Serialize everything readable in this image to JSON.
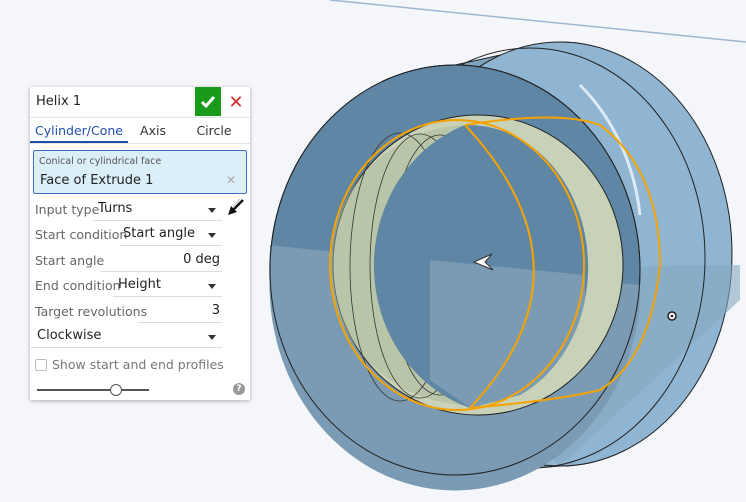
{
  "dialog": {
    "title": "Helix 1",
    "tabs": [
      {
        "label": "Cylinder/Cone",
        "active": true
      },
      {
        "label": "Axis",
        "active": false
      },
      {
        "label": "Circle",
        "active": false
      }
    ],
    "selection": {
      "label": "Conical or cylindrical face",
      "value": "Face of Extrude 1"
    },
    "input_type": {
      "label": "Input type",
      "value": "Turns"
    },
    "start_condition": {
      "label": "Start condition",
      "value": "Start angle"
    },
    "start_angle": {
      "label": "Start angle",
      "value": "0 deg"
    },
    "end_condition": {
      "label": "End condition",
      "value": "Height"
    },
    "target_revolutions": {
      "label": "Target revolutions",
      "value": "3"
    },
    "direction": {
      "value": "Clockwise"
    },
    "show_profiles": {
      "label": "Show start and end profiles",
      "checked": false
    },
    "slider_level": 0.7,
    "help": "?"
  },
  "colors": {
    "accept": "#1a9a1a",
    "cancel": "#d42a2a",
    "accent": "#1f4fa5",
    "highlight": "#f5a300",
    "part": "#6f93ae"
  }
}
